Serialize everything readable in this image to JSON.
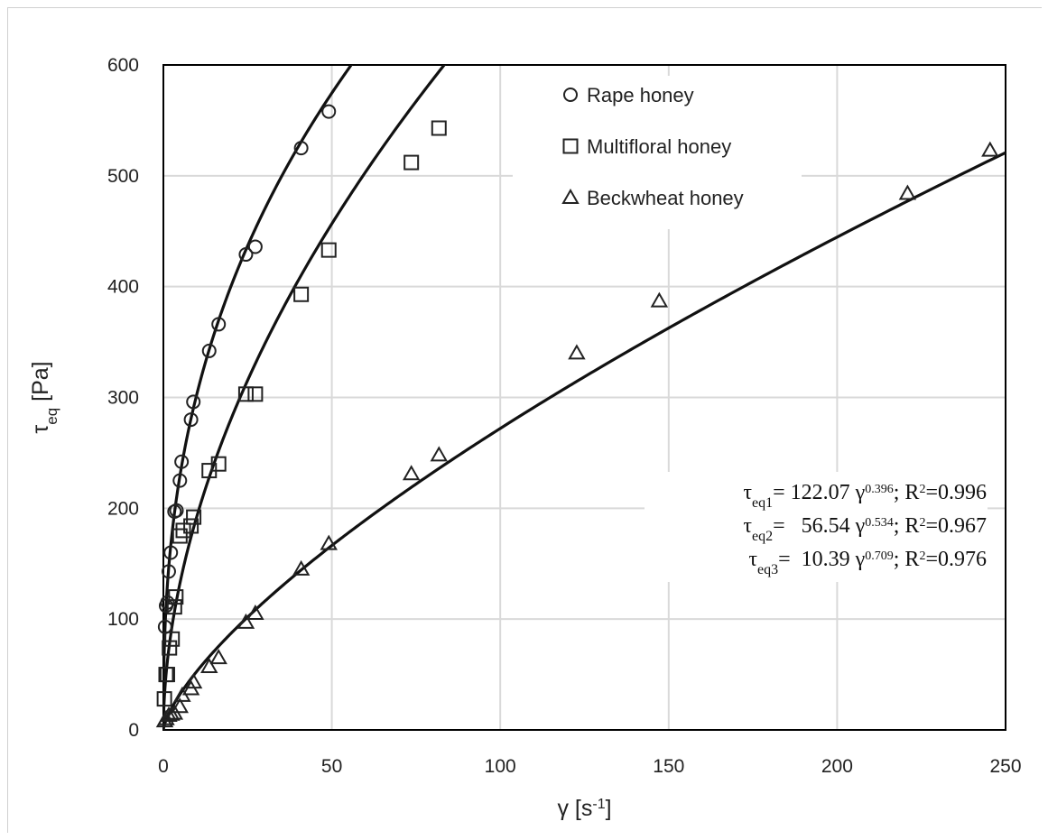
{
  "chart_data": {
    "type": "scatter",
    "xlabel": "γ [s-1]",
    "xlabel_parts": {
      "main": "γ [s",
      "sup": "-1",
      "end": "]"
    },
    "ylabel": "τeq [Pa]",
    "ylabel_parts": {
      "main": "τ",
      "sub": "eq",
      "end": " [Pa]"
    },
    "xlim": [
      0,
      250
    ],
    "ylim": [
      0,
      600
    ],
    "xticks": [
      0,
      50,
      100,
      150,
      200,
      250
    ],
    "yticks": [
      0,
      100,
      200,
      300,
      400,
      500,
      600
    ],
    "xtick_labels": [
      "0",
      "50",
      "100",
      "150",
      "200",
      "250"
    ],
    "ytick_labels": [
      "0",
      "100",
      "200",
      "300",
      "400",
      "500",
      "600"
    ],
    "grid": true,
    "legend_position": "top-right",
    "series": [
      {
        "name": "Rape honey",
        "marker": "circle",
        "points": [
          [
            0.5,
            93
          ],
          [
            0.8,
            112
          ],
          [
            1.2,
            115
          ],
          [
            1.6,
            143
          ],
          [
            2.2,
            160
          ],
          [
            3.3,
            197
          ],
          [
            3.9,
            198
          ],
          [
            4.9,
            225
          ],
          [
            5.4,
            242
          ],
          [
            8.2,
            280
          ],
          [
            8.9,
            296
          ],
          [
            13.6,
            342
          ],
          [
            16.4,
            366
          ],
          [
            24.5,
            429
          ],
          [
            27.3,
            436
          ],
          [
            40.9,
            525
          ],
          [
            49.1,
            558
          ]
        ]
      },
      {
        "name": "Multifloral honey",
        "marker": "square",
        "points": [
          [
            0.3,
            28
          ],
          [
            0.8,
            50
          ],
          [
            1.2,
            50
          ],
          [
            1.8,
            74
          ],
          [
            2.6,
            82
          ],
          [
            3.3,
            111
          ],
          [
            3.7,
            120
          ],
          [
            4.9,
            175
          ],
          [
            5.9,
            180
          ],
          [
            8.2,
            184
          ],
          [
            9.0,
            192
          ],
          [
            13.6,
            234
          ],
          [
            16.4,
            240
          ],
          [
            24.5,
            303
          ],
          [
            27.3,
            303
          ],
          [
            40.9,
            393
          ],
          [
            49.1,
            433
          ],
          [
            73.6,
            512
          ],
          [
            81.8,
            543
          ]
        ]
      },
      {
        "name": "Beckwheat honey",
        "marker": "triangle",
        "points": [
          [
            0.4,
            8
          ],
          [
            0.8,
            10
          ],
          [
            1.6,
            13
          ],
          [
            2.4,
            14
          ],
          [
            3.3,
            15
          ],
          [
            4.9,
            21
          ],
          [
            5.6,
            31
          ],
          [
            8.2,
            37
          ],
          [
            9.0,
            43
          ],
          [
            13.6,
            57
          ],
          [
            16.4,
            65
          ],
          [
            24.5,
            97
          ],
          [
            27.3,
            105
          ],
          [
            40.9,
            145
          ],
          [
            49.1,
            168
          ],
          [
            73.6,
            231
          ],
          [
            81.8,
            248
          ],
          [
            122.7,
            340
          ],
          [
            147.2,
            387
          ],
          [
            220.9,
            484
          ],
          [
            245.4,
            523
          ]
        ]
      }
    ],
    "fits": [
      {
        "a": 122.07,
        "b": 0.396,
        "r2": 0.996
      },
      {
        "a": 56.54,
        "b": 0.534,
        "r2": 0.967
      },
      {
        "a": 10.39,
        "b": 0.709,
        "r2": 0.976
      }
    ],
    "equations": [
      {
        "tau": "τ",
        "sub": "eq1",
        "eq": "= 122.07",
        "gamma": " γ",
        "sup": "0.396",
        "tail": "; R",
        "r2sup": "2",
        "r2": "=0.996"
      },
      {
        "tau": "τ",
        "sub": "eq2",
        "eq": "=   56.54",
        "gamma": " γ",
        "sup": "0.534",
        "tail": "; R",
        "r2sup": "2",
        "r2": "=0.967"
      },
      {
        "tau": "τ",
        "sub": "eq3",
        "eq": "=  10.39",
        "gamma": " γ",
        "sup": "0.709",
        "tail": "; R",
        "r2sup": "2",
        "r2": "=0.976"
      }
    ],
    "colors": {
      "marker": "#222222",
      "fit_line": "#111111",
      "grid": "#d9d9d9",
      "axis": "#000000"
    }
  }
}
